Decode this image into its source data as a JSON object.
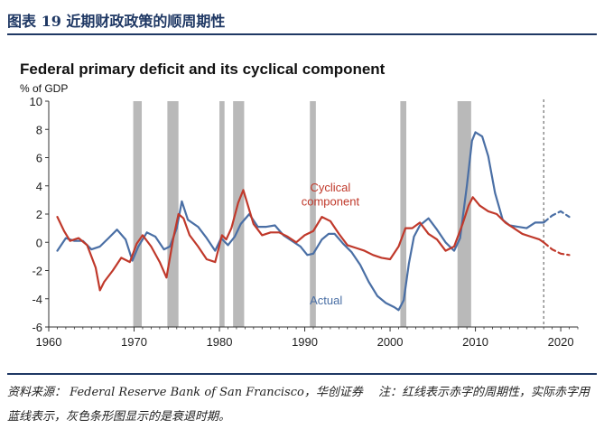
{
  "figure": {
    "label": "图表 19 近期财政政策的顺周期性",
    "source": "资料来源： Federal Reserve Bank of San Francisco，华创证券　 注：红线表示赤字的周期性，实际赤字用蓝线表示，灰色条形图显示的是衰退时期。"
  },
  "chart_data": {
    "type": "line",
    "title": "Federal primary deficit and its cyclical component",
    "ylabel": "% of GDP",
    "xlabel": "",
    "xlim": [
      1960,
      2022
    ],
    "ylim": [
      -6,
      10
    ],
    "xticks": [
      1960,
      1970,
      1980,
      1990,
      2000,
      2010,
      2020
    ],
    "yticks": [
      -6,
      -4,
      -2,
      0,
      2,
      4,
      6,
      8,
      10
    ],
    "recessions": [
      [
        1969.9,
        1970.9
      ],
      [
        1973.9,
        1975.2
      ],
      [
        1980.0,
        1980.6
      ],
      [
        1981.6,
        1982.9
      ],
      [
        1990.6,
        1991.3
      ],
      [
        2001.2,
        2001.9
      ],
      [
        2007.9,
        2009.5
      ]
    ],
    "forecast_start": 2018.0,
    "colors": {
      "actual": "#4a6fa5",
      "cyclical": "#c0392b",
      "recession": "#b9b9b9",
      "axis": "#333333"
    },
    "annotations": [
      {
        "text": "Cyclical",
        "x": 1993.0,
        "y": 3.6
      },
      {
        "text": "component",
        "x": 1993.0,
        "y": 2.6
      },
      {
        "text": "Actual",
        "x": 1992.5,
        "y": -4.4
      }
    ],
    "series": [
      {
        "name": "Actual",
        "color": "#4a6fa5",
        "points": [
          [
            1961,
            -0.6
          ],
          [
            1962,
            0.3
          ],
          [
            1963,
            0.1
          ],
          [
            1964,
            0.1
          ],
          [
            1965,
            -0.5
          ],
          [
            1966,
            -0.3
          ],
          [
            1967,
            0.3
          ],
          [
            1968,
            0.9
          ],
          [
            1969,
            0.2
          ],
          [
            1969.8,
            -1.3
          ],
          [
            1970.5,
            -0.3
          ],
          [
            1971.5,
            0.7
          ],
          [
            1972.5,
            0.4
          ],
          [
            1973.5,
            -0.5
          ],
          [
            1974.2,
            -0.3
          ],
          [
            1975,
            1.0
          ],
          [
            1975.6,
            2.9
          ],
          [
            1976.3,
            1.6
          ],
          [
            1977.5,
            1.1
          ],
          [
            1978.5,
            0.3
          ],
          [
            1979.5,
            -0.6
          ],
          [
            1980.2,
            0.3
          ],
          [
            1981,
            -0.2
          ],
          [
            1981.8,
            0.4
          ],
          [
            1982.5,
            1.3
          ],
          [
            1983.5,
            2.0
          ],
          [
            1984.5,
            1.1
          ],
          [
            1985.5,
            1.1
          ],
          [
            1986.5,
            1.2
          ],
          [
            1987.5,
            0.5
          ],
          [
            1988.5,
            0.1
          ],
          [
            1989.5,
            -0.3
          ],
          [
            1990.3,
            -0.9
          ],
          [
            1991,
            -0.8
          ],
          [
            1992,
            0.2
          ],
          [
            1992.8,
            0.6
          ],
          [
            1993.5,
            0.6
          ],
          [
            1994.5,
            -0.1
          ],
          [
            1995.5,
            -0.7
          ],
          [
            1996.5,
            -1.6
          ],
          [
            1997.5,
            -2.8
          ],
          [
            1998.5,
            -3.8
          ],
          [
            1999.5,
            -4.3
          ],
          [
            2000.5,
            -4.6
          ],
          [
            2001,
            -4.8
          ],
          [
            2001.6,
            -4.1
          ],
          [
            2002.2,
            -1.5
          ],
          [
            2002.8,
            0.4
          ],
          [
            2003.5,
            1.2
          ],
          [
            2004.5,
            1.7
          ],
          [
            2005.5,
            0.9
          ],
          [
            2006.5,
            0.0
          ],
          [
            2007.5,
            -0.6
          ],
          [
            2008.2,
            0.3
          ],
          [
            2009,
            4.0
          ],
          [
            2009.6,
            7.2
          ],
          [
            2010,
            7.8
          ],
          [
            2010.8,
            7.5
          ],
          [
            2011.5,
            6.1
          ],
          [
            2012.3,
            3.5
          ],
          [
            2013.2,
            1.6
          ],
          [
            2014,
            1.2
          ],
          [
            2015,
            1.1
          ],
          [
            2016,
            1.0
          ],
          [
            2017,
            1.4
          ],
          [
            2018,
            1.4
          ]
        ]
      },
      {
        "name": "Actual (projection)",
        "color": "#4a6fa5",
        "dashed": true,
        "points": [
          [
            2018,
            1.4
          ],
          [
            2019,
            1.9
          ],
          [
            2020,
            2.2
          ],
          [
            2021,
            1.8
          ]
        ]
      },
      {
        "name": "Cyclical component",
        "color": "#c0392b",
        "points": [
          [
            1961,
            1.8
          ],
          [
            1961.8,
            0.8
          ],
          [
            1962.5,
            0.1
          ],
          [
            1963.5,
            0.3
          ],
          [
            1964.5,
            -0.2
          ],
          [
            1965.5,
            -1.8
          ],
          [
            1966,
            -3.4
          ],
          [
            1966.5,
            -2.8
          ],
          [
            1967.5,
            -2.0
          ],
          [
            1968.5,
            -1.1
          ],
          [
            1969.5,
            -1.4
          ],
          [
            1970.3,
            -0.1
          ],
          [
            1971,
            0.5
          ],
          [
            1972,
            -0.3
          ],
          [
            1973,
            -1.4
          ],
          [
            1973.8,
            -2.5
          ],
          [
            1974.6,
            0.3
          ],
          [
            1975.2,
            2.0
          ],
          [
            1975.8,
            1.7
          ],
          [
            1976.5,
            0.5
          ],
          [
            1977.5,
            -0.3
          ],
          [
            1978.5,
            -1.2
          ],
          [
            1979.5,
            -1.4
          ],
          [
            1980.3,
            0.5
          ],
          [
            1980.8,
            0.2
          ],
          [
            1981.4,
            1.0
          ],
          [
            1982.2,
            2.8
          ],
          [
            1982.8,
            3.7
          ],
          [
            1983.3,
            2.7
          ],
          [
            1984,
            1.3
          ],
          [
            1985,
            0.5
          ],
          [
            1986,
            0.7
          ],
          [
            1987,
            0.7
          ],
          [
            1988,
            0.4
          ],
          [
            1989,
            0.0
          ],
          [
            1990,
            0.5
          ],
          [
            1991,
            0.8
          ],
          [
            1992,
            1.8
          ],
          [
            1993,
            1.5
          ],
          [
            1994,
            0.6
          ],
          [
            1995,
            -0.2
          ],
          [
            1996,
            -0.4
          ],
          [
            1997,
            -0.6
          ],
          [
            1998,
            -0.9
          ],
          [
            1999,
            -1.1
          ],
          [
            2000,
            -1.2
          ],
          [
            2001,
            -0.3
          ],
          [
            2001.8,
            1.0
          ],
          [
            2002.6,
            1.0
          ],
          [
            2003.5,
            1.4
          ],
          [
            2004.5,
            0.6
          ],
          [
            2005.5,
            0.2
          ],
          [
            2006.5,
            -0.6
          ],
          [
            2007.5,
            -0.3
          ],
          [
            2008.5,
            1.3
          ],
          [
            2009.2,
            2.6
          ],
          [
            2009.7,
            3.2
          ],
          [
            2010.5,
            2.6
          ],
          [
            2011.5,
            2.2
          ],
          [
            2012.5,
            2.0
          ],
          [
            2013.5,
            1.4
          ],
          [
            2014.5,
            1.0
          ],
          [
            2015.5,
            0.6
          ],
          [
            2016.5,
            0.4
          ],
          [
            2017.5,
            0.2
          ],
          [
            2018,
            0.0
          ]
        ]
      },
      {
        "name": "Cyclical component (projection)",
        "color": "#c0392b",
        "dashed": true,
        "points": [
          [
            2018,
            0.0
          ],
          [
            2019,
            -0.5
          ],
          [
            2020,
            -0.8
          ],
          [
            2021,
            -0.9
          ]
        ]
      }
    ]
  }
}
